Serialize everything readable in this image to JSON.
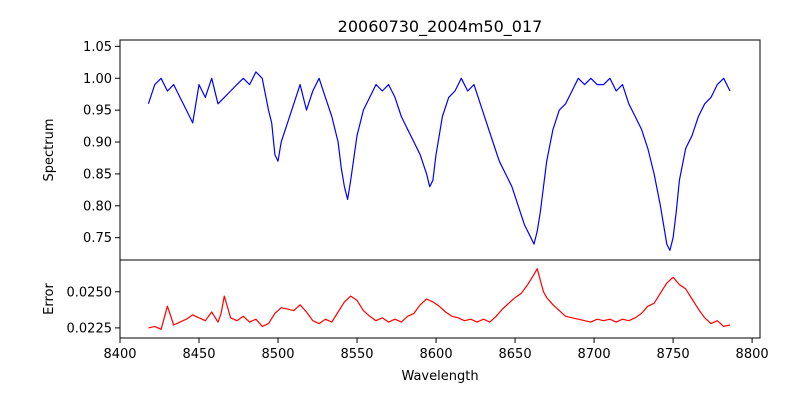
{
  "figure": {
    "title": "20060730_2004m50_017"
  },
  "chart_data": [
    {
      "type": "line",
      "panel": "top",
      "title": "20060730_2004m50_017",
      "xlabel": "",
      "ylabel": "Spectrum",
      "xlim": [
        8400,
        8805
      ],
      "ylim": [
        0.715,
        1.06
      ],
      "yticks": [
        0.75,
        0.8,
        0.85,
        0.9,
        0.95,
        1.0,
        1.05
      ],
      "ytick_labels": [
        "0.75",
        "0.80",
        "0.85",
        "0.90",
        "0.95",
        "1.00",
        "1.05"
      ],
      "grid": false,
      "series": [
        {
          "color": "#0000ff",
          "x": [
            8418,
            8422,
            8426,
            8430,
            8434,
            8438,
            8442,
            8446,
            8450,
            8454,
            8458,
            8462,
            8466,
            8470,
            8474,
            8478,
            8482,
            8486,
            8490,
            8494,
            8496,
            8498,
            8500,
            8502,
            8506,
            8510,
            8514,
            8518,
            8522,
            8526,
            8530,
            8534,
            8538,
            8540,
            8542,
            8544,
            8546,
            8550,
            8554,
            8558,
            8562,
            8566,
            8570,
            8574,
            8578,
            8582,
            8586,
            8590,
            8594,
            8596,
            8598,
            8600,
            8604,
            8608,
            8612,
            8616,
            8620,
            8624,
            8628,
            8632,
            8636,
            8640,
            8644,
            8648,
            8652,
            8656,
            8660,
            8662,
            8664,
            8666,
            8668,
            8670,
            8674,
            8678,
            8682,
            8686,
            8690,
            8694,
            8698,
            8702,
            8706,
            8710,
            8714,
            8718,
            8722,
            8726,
            8730,
            8734,
            8738,
            8742,
            8744,
            8746,
            8748,
            8750,
            8752,
            8754,
            8758,
            8762,
            8766,
            8770,
            8774,
            8778,
            8782,
            8786
          ],
          "values": [
            0.96,
            0.99,
            1.0,
            0.98,
            0.99,
            0.97,
            0.95,
            0.93,
            0.99,
            0.97,
            1.0,
            0.96,
            0.97,
            0.98,
            0.99,
            1.0,
            0.99,
            1.01,
            1.0,
            0.95,
            0.93,
            0.88,
            0.87,
            0.9,
            0.93,
            0.96,
            0.99,
            0.95,
            0.98,
            1.0,
            0.97,
            0.94,
            0.9,
            0.86,
            0.83,
            0.81,
            0.84,
            0.91,
            0.95,
            0.97,
            0.99,
            0.98,
            0.99,
            0.97,
            0.94,
            0.92,
            0.9,
            0.88,
            0.85,
            0.83,
            0.84,
            0.88,
            0.94,
            0.97,
            0.98,
            1.0,
            0.98,
            0.99,
            0.96,
            0.93,
            0.9,
            0.87,
            0.85,
            0.83,
            0.8,
            0.77,
            0.75,
            0.74,
            0.76,
            0.79,
            0.83,
            0.87,
            0.92,
            0.95,
            0.96,
            0.98,
            1.0,
            0.99,
            1.0,
            0.99,
            0.99,
            1.0,
            0.98,
            0.99,
            0.96,
            0.94,
            0.92,
            0.89,
            0.85,
            0.8,
            0.77,
            0.74,
            0.73,
            0.75,
            0.79,
            0.84,
            0.89,
            0.91,
            0.94,
            0.96,
            0.97,
            0.99,
            1.0,
            0.98
          ]
        }
      ]
    },
    {
      "type": "line",
      "panel": "bottom",
      "xlabel": "Wavelength",
      "ylabel": "Error",
      "xlim": [
        8400,
        8805
      ],
      "ylim": [
        0.0218,
        0.0272
      ],
      "xticks": [
        8400,
        8450,
        8500,
        8550,
        8600,
        8650,
        8700,
        8750,
        8800
      ],
      "xtick_labels": [
        "8400",
        "8450",
        "8500",
        "8550",
        "8600",
        "8650",
        "8700",
        "8750",
        "8800"
      ],
      "yticks": [
        0.0225,
        0.025
      ],
      "ytick_labels": [
        "0.0225",
        "0.0250"
      ],
      "grid": false,
      "series": [
        {
          "color": "#ff0000",
          "x": [
            8418,
            8422,
            8426,
            8430,
            8434,
            8438,
            8442,
            8446,
            8450,
            8454,
            8458,
            8462,
            8464,
            8466,
            8470,
            8474,
            8478,
            8482,
            8486,
            8490,
            8494,
            8498,
            8502,
            8506,
            8510,
            8514,
            8518,
            8522,
            8526,
            8530,
            8534,
            8538,
            8542,
            8546,
            8550,
            8554,
            8558,
            8562,
            8566,
            8570,
            8574,
            8578,
            8582,
            8586,
            8590,
            8594,
            8598,
            8602,
            8606,
            8610,
            8614,
            8618,
            8622,
            8626,
            8630,
            8634,
            8638,
            8642,
            8646,
            8650,
            8654,
            8658,
            8662,
            8664,
            8666,
            8668,
            8670,
            8674,
            8678,
            8682,
            8686,
            8690,
            8694,
            8698,
            8702,
            8706,
            8710,
            8714,
            8718,
            8722,
            8726,
            8730,
            8734,
            8738,
            8742,
            8746,
            8750,
            8754,
            8758,
            8762,
            8766,
            8770,
            8774,
            8778,
            8782,
            8786
          ],
          "values": [
            0.0225,
            0.0226,
            0.0224,
            0.024,
            0.0227,
            0.0229,
            0.0231,
            0.0234,
            0.0232,
            0.023,
            0.0236,
            0.0229,
            0.0235,
            0.0247,
            0.0232,
            0.023,
            0.0233,
            0.0229,
            0.0231,
            0.0226,
            0.0228,
            0.0235,
            0.0239,
            0.0238,
            0.0237,
            0.0241,
            0.0236,
            0.023,
            0.0228,
            0.0231,
            0.0229,
            0.0236,
            0.0243,
            0.0247,
            0.0244,
            0.0237,
            0.0233,
            0.023,
            0.0232,
            0.0229,
            0.0231,
            0.0229,
            0.0233,
            0.0235,
            0.0241,
            0.0245,
            0.0243,
            0.024,
            0.0236,
            0.0233,
            0.0232,
            0.023,
            0.0231,
            0.0229,
            0.0231,
            0.0229,
            0.0233,
            0.0238,
            0.0242,
            0.0246,
            0.0249,
            0.0255,
            0.0262,
            0.0266,
            0.0258,
            0.025,
            0.0246,
            0.0241,
            0.0237,
            0.0233,
            0.0232,
            0.0231,
            0.023,
            0.0229,
            0.0231,
            0.023,
            0.0231,
            0.0229,
            0.0231,
            0.023,
            0.0232,
            0.0235,
            0.024,
            0.0242,
            0.0249,
            0.0256,
            0.026,
            0.0255,
            0.0252,
            0.0245,
            0.0238,
            0.0232,
            0.0228,
            0.023,
            0.0226,
            0.0227
          ]
        }
      ]
    }
  ]
}
